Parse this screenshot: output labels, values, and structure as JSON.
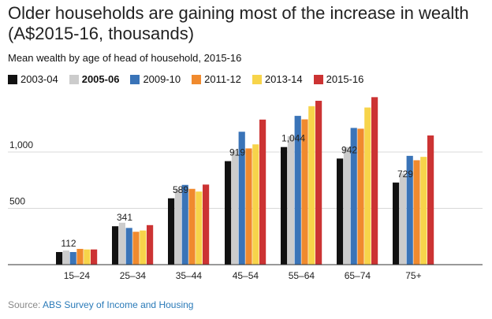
{
  "title": "Older households are gaining most of the increase in wealth (A$2015-16, thousands)",
  "subtitle": "Mean wealth by age of head of household, 2015-16",
  "source_prefix": "Source: ",
  "source_link": "ABS Survey of Income and Housing",
  "chart_data": {
    "type": "bar",
    "categories": [
      "15–24",
      "25–34",
      "35–44",
      "45–54",
      "55–64",
      "65–74",
      "75+"
    ],
    "series": [
      {
        "name": "2003-04",
        "color": "#111111",
        "values": [
          112,
          341,
          589,
          919,
          1044,
          942,
          729
        ]
      },
      {
        "name": "2005-06",
        "color": "#cccccc",
        "values": [
          125,
          372,
          675,
          1012,
          1140,
          1044,
          810
        ]
      },
      {
        "name": "2009-10",
        "color": "#3a74b8",
        "values": [
          112,
          326,
          708,
          1180,
          1321,
          1214,
          966
        ]
      },
      {
        "name": "2011-12",
        "color": "#f08a2e",
        "values": [
          140,
          292,
          673,
          1032,
          1290,
          1207,
          927
        ]
      },
      {
        "name": "2013-14",
        "color": "#f7d44a",
        "values": [
          135,
          303,
          649,
          1068,
          1407,
          1395,
          957
        ]
      },
      {
        "name": "2015-16",
        "color": "#cc3333",
        "values": [
          135,
          351,
          711,
          1288,
          1455,
          1487,
          1147
        ]
      }
    ],
    "data_labels": [
      "112",
      "341",
      "589",
      "919",
      "1,044",
      "942",
      "729"
    ],
    "y_ticks": [
      {
        "value": 500,
        "label": "500"
      },
      {
        "value": 1000,
        "label": "1,000"
      }
    ],
    "ylim": [
      0,
      1620
    ],
    "grid": true,
    "legend_position": "top-left",
    "bold_legend_series": "2005-06"
  }
}
